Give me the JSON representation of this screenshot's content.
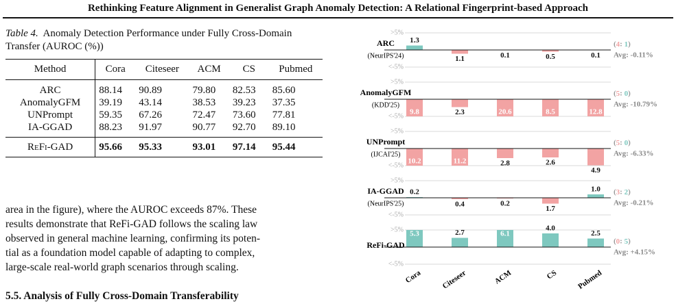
{
  "header": {
    "title": "Rethinking Feature Alignment in Generalist Graph Anomaly Detection: A Relational Fingerprint-based Approach"
  },
  "caption": {
    "label": "Table 4.",
    "text": "Anomaly Detection Performance under Fully Cross-Domain Transfer (AUROC (%))"
  },
  "table": {
    "columns": [
      "Method",
      "Cora",
      "Citeseer",
      "ACM",
      "CS",
      "Pubmed"
    ],
    "rows": [
      [
        "ARC",
        "88.14",
        "90.89",
        "79.80",
        "82.53",
        "85.60"
      ],
      [
        "AnomalyGFM",
        "39.19",
        "43.14",
        "38.53",
        "39.23",
        "37.35"
      ],
      [
        "UNPrompt",
        "59.35",
        "67.26",
        "72.47",
        "73.60",
        "77.81"
      ],
      [
        "IA-GGAD",
        "88.23",
        "91.97",
        "90.77",
        "92.70",
        "89.10"
      ]
    ],
    "ours": [
      "ReFi-GAD",
      "95.66",
      "95.33",
      "93.01",
      "97.14",
      "95.44"
    ]
  },
  "paragraph": {
    "lines": [
      "area in the figure), where the AUROC exceeds 87%. These",
      "results demonstrate that ReFi-GAD follows the scaling law",
      "observed in general machine learning, confirming its poten-",
      "tial as a foundation model capable of adapting to complex,",
      "large-scale real-world graph scenarios through scaling."
    ]
  },
  "section": {
    "heading": "5.5. Analysis of Fully Cross-Domain Transferability"
  },
  "chart_data": {
    "type": "bar",
    "categories": [
      "Cora",
      "Citeseer",
      "ACM",
      "CS",
      "Pubmed"
    ],
    "ylim": [
      -5,
      5
    ],
    "yticks": [
      {
        "value": 5,
        "label": ">5%"
      },
      {
        "value": -5,
        "label": "<-5%"
      }
    ],
    "pos_color": "#7ec8bf",
    "neg_color": "#f2a3a3",
    "series": [
      {
        "name": "ARC",
        "venue": "(NeurIPS'24)",
        "values": [
          1.3,
          -1.1,
          -0.1,
          -0.5,
          -0.1
        ],
        "value_labels": [
          "1.3",
          "1.1",
          "0.1",
          "0.5",
          "0.1"
        ],
        "counts": [
          4,
          1
        ],
        "avg": "Avg: -0.11%"
      },
      {
        "name": "AnomalyGFM",
        "venue": "(KDD'25)",
        "values": [
          -9.8,
          -2.3,
          -20.6,
          -8.5,
          -12.8
        ],
        "value_labels": [
          "9.8",
          "2.3",
          "20.6",
          "8.5",
          "12.8"
        ],
        "counts": [
          5,
          0
        ],
        "avg": "Avg: -10.79%"
      },
      {
        "name": "UNPrompt",
        "venue": "(IJCAI'25)",
        "values": [
          -10.2,
          -11.2,
          -2.8,
          -2.6,
          -4.9
        ],
        "value_labels": [
          "10.2",
          "11.2",
          "2.8",
          "2.6",
          "4.9"
        ],
        "counts": [
          5,
          0
        ],
        "avg": "Avg: -6.33%"
      },
      {
        "name": "IA-GGAD",
        "venue": "(NeurIPS'25)",
        "values": [
          0.2,
          -0.4,
          -0.2,
          -1.7,
          1.0
        ],
        "value_labels": [
          "0.2",
          "0.4",
          "0.2",
          "1.7",
          "1.0"
        ],
        "counts": [
          3,
          2
        ],
        "avg": "Avg: -0.21%"
      },
      {
        "name": "ReFi-GAD",
        "values": [
          5.3,
          2.7,
          6.1,
          4.0,
          2.5
        ],
        "value_labels": [
          "5.3",
          "2.7",
          "6.1",
          "4.0",
          "2.5"
        ],
        "counts": [
          0,
          5
        ],
        "avg": "Avg: +4.15%"
      }
    ]
  }
}
